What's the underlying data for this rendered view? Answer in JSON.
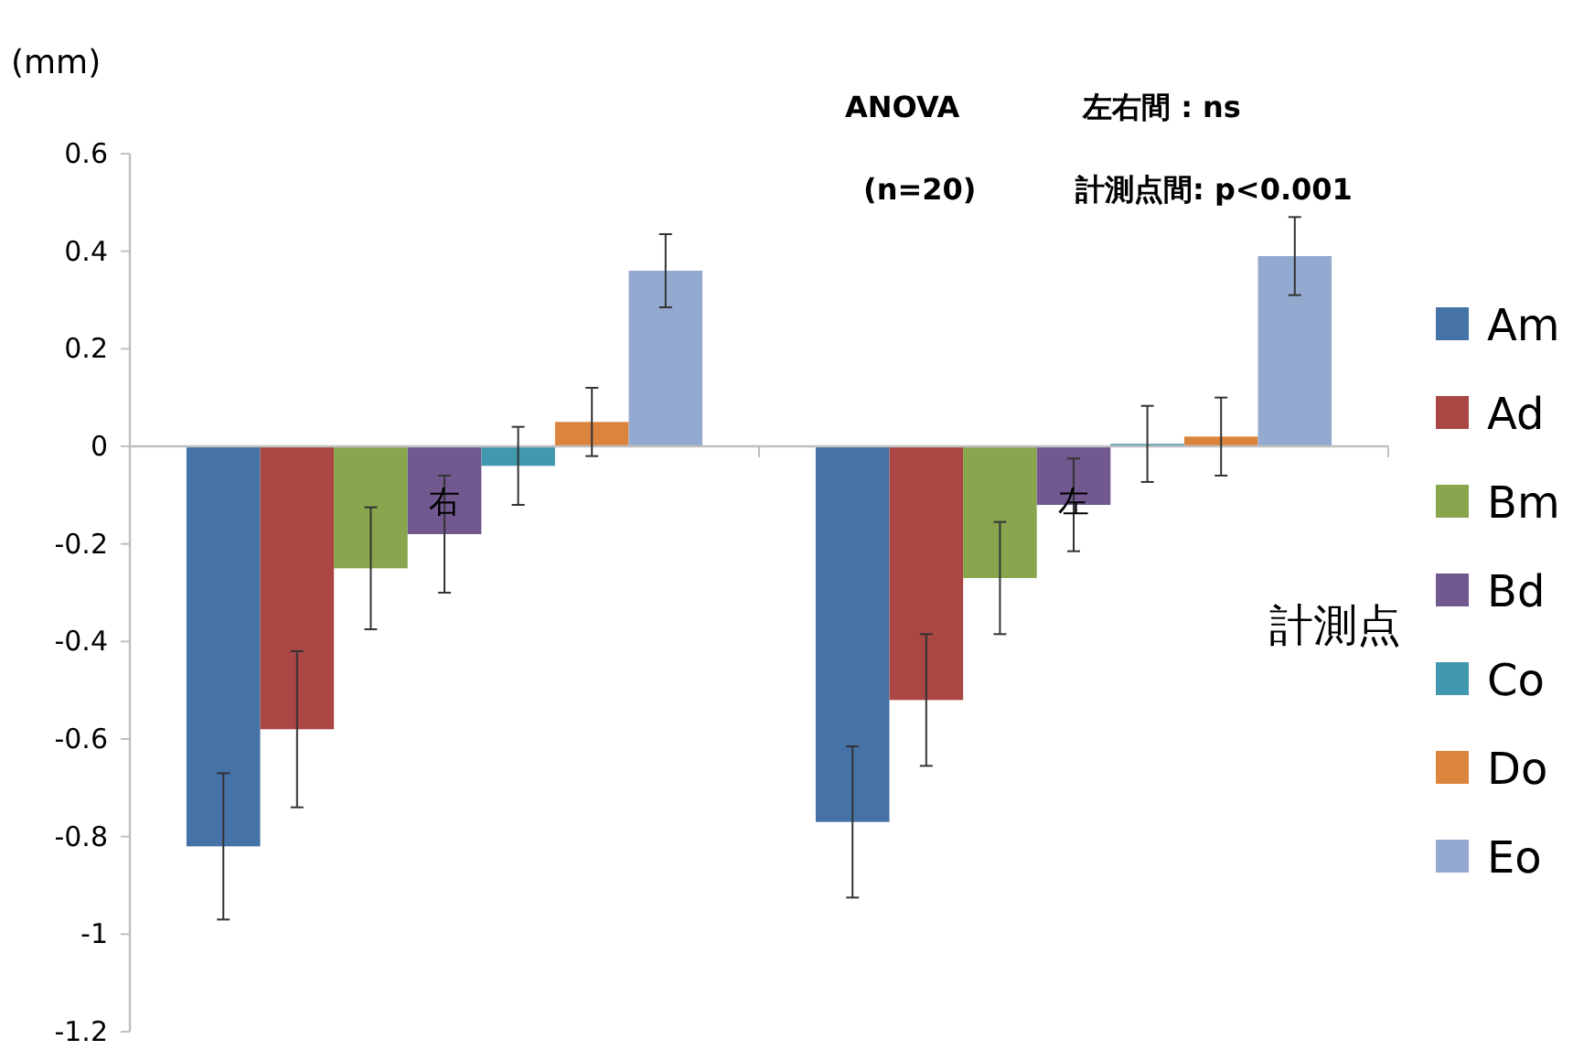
{
  "chart_data": {
    "type": "bar",
    "ylabel": "(mm)",
    "legend_title": "計測点",
    "categories": [
      "右",
      "左"
    ],
    "series": [
      {
        "name": "Am",
        "color": "#4572a7",
        "values": [
          -0.82,
          -0.77
        ],
        "errors": [
          0.15,
          0.155
        ]
      },
      {
        "name": "Ad",
        "color": "#aa4643",
        "values": [
          -0.58,
          -0.52
        ],
        "errors": [
          0.16,
          0.135
        ]
      },
      {
        "name": "Bm",
        "color": "#89a54e",
        "values": [
          -0.25,
          -0.27
        ],
        "errors": [
          0.125,
          0.115
        ]
      },
      {
        "name": "Bd",
        "color": "#71588f",
        "values": [
          -0.18,
          -0.12
        ],
        "errors": [
          0.12,
          0.095
        ]
      },
      {
        "name": "Co",
        "color": "#4198af",
        "values": [
          -0.04,
          0.005
        ],
        "errors": [
          0.08,
          0.078
        ]
      },
      {
        "name": "Do",
        "color": "#db843d",
        "values": [
          0.05,
          0.02
        ],
        "errors": [
          0.07,
          0.08
        ]
      },
      {
        "name": "Eo",
        "color": "#93a9cf",
        "values": [
          0.36,
          0.39
        ],
        "errors": [
          0.075,
          0.08
        ]
      }
    ],
    "ylim": [
      -1.2,
      0.6
    ],
    "yticks": [
      -1.2,
      -1,
      -0.8,
      -0.6,
      -0.4,
      -0.2,
      0,
      0.2,
      0.4,
      0.6
    ],
    "annotations": [
      "ANOVA",
      "左右間 : ns",
      "(n=20)",
      "計測点間: p<0.001"
    ],
    "legend": "right",
    "grid": false
  }
}
